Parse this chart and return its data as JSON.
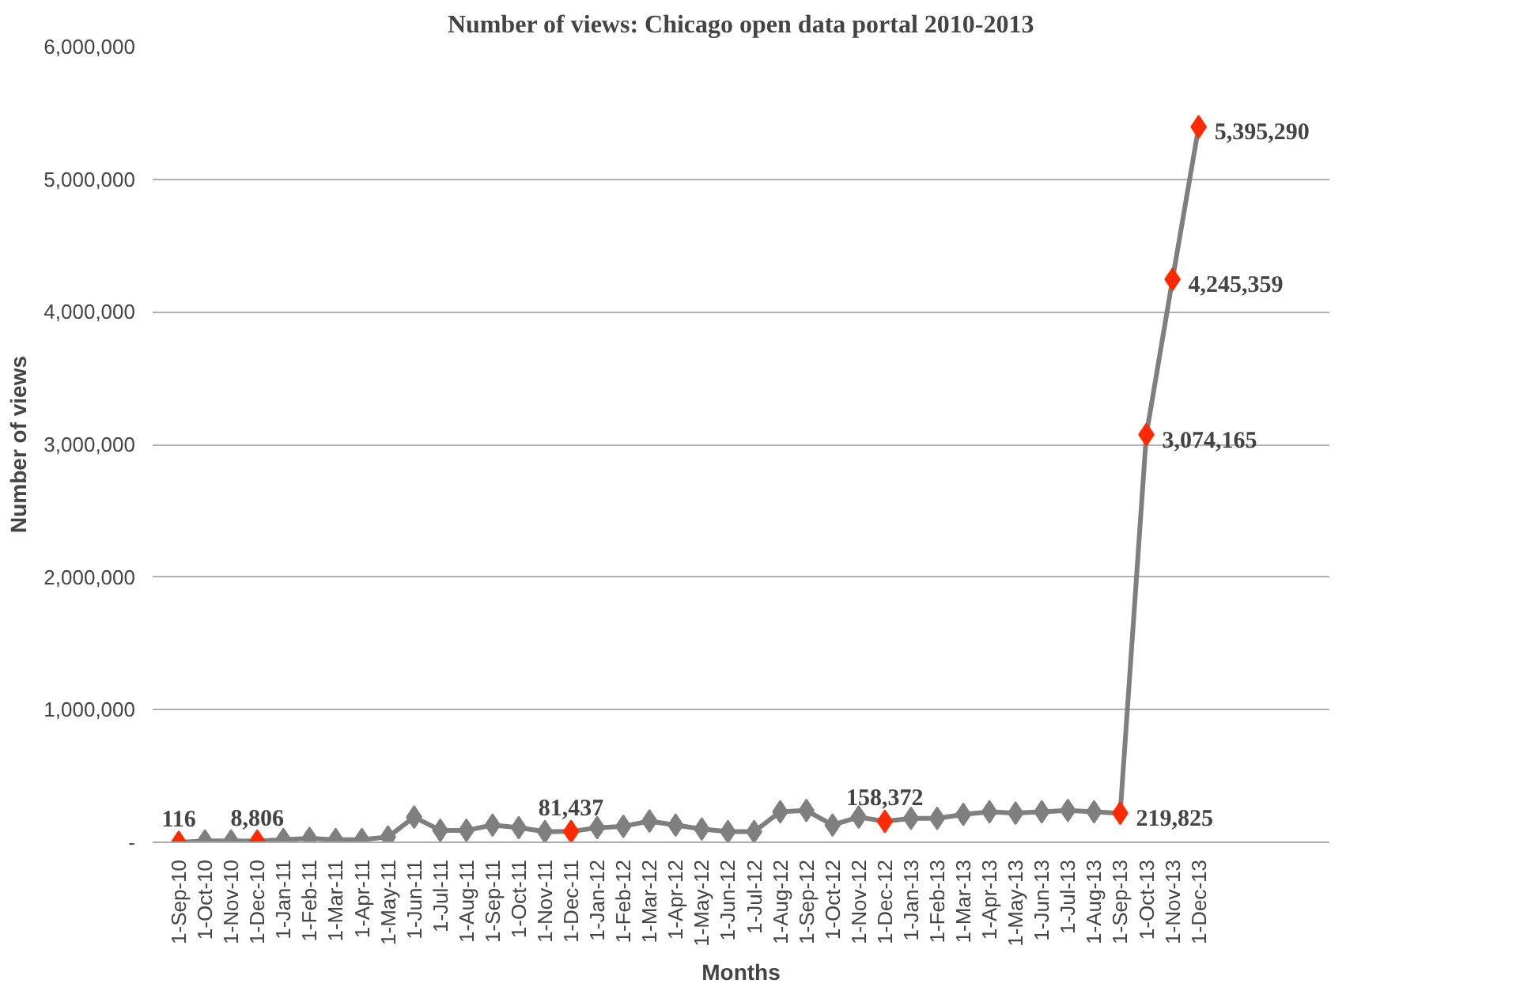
{
  "chart_data": {
    "type": "line",
    "title": "Number of views: Chicago open data portal 2010-2013",
    "xlabel": "Months",
    "ylabel": "Number of views",
    "categories": [
      "1-Sep-10",
      "1-Oct-10",
      "1-Nov-10",
      "1-Dec-10",
      "1-Jan-11",
      "1-Feb-11",
      "1-Mar-11",
      "1-Apr-11",
      "1-May-11",
      "1-Jun-11",
      "1-Jul-11",
      "1-Aug-11",
      "1-Sep-11",
      "1-Oct-11",
      "1-Nov-11",
      "1-Dec-11",
      "1-Jan-12",
      "1-Feb-12",
      "1-Mar-12",
      "1-Apr-12",
      "1-May-12",
      "1-Jun-12",
      "1-Jul-12",
      "1-Aug-12",
      "1-Sep-12",
      "1-Oct-12",
      "1-Nov-12",
      "1-Dec-12",
      "1-Jan-13",
      "1-Feb-13",
      "1-Mar-13",
      "1-Apr-13",
      "1-May-13",
      "1-Jun-13",
      "1-Jul-13",
      "1-Aug-13",
      "1-Sep-13",
      "1-Oct-13",
      "1-Nov-13",
      "1-Dec-13"
    ],
    "series": [
      {
        "color": "#7f7f7f",
        "values": [
          116,
          10000,
          10000,
          8806,
          20000,
          30000,
          20000,
          20000,
          40000,
          190000,
          90000,
          90000,
          130000,
          110000,
          80000,
          81437,
          110000,
          120000,
          160000,
          130000,
          100000,
          80000,
          80000,
          230000,
          240000,
          130000,
          190000,
          158372,
          180000,
          180000,
          210000,
          230000,
          220000,
          230000,
          240000,
          230000,
          219825,
          3074165,
          4245359,
          5395290
        ],
        "colors": [
          "#ff2a00",
          "#7f7f7f",
          "#7f7f7f",
          "#ff2a00",
          "#7f7f7f",
          "#7f7f7f",
          "#7f7f7f",
          "#7f7f7f",
          "#7f7f7f",
          "#7f7f7f",
          "#7f7f7f",
          "#7f7f7f",
          "#7f7f7f",
          "#7f7f7f",
          "#7f7f7f",
          "#ff2a00",
          "#7f7f7f",
          "#7f7f7f",
          "#7f7f7f",
          "#7f7f7f",
          "#7f7f7f",
          "#7f7f7f",
          "#7f7f7f",
          "#7f7f7f",
          "#7f7f7f",
          "#7f7f7f",
          "#7f7f7f",
          "#ff2a00",
          "#7f7f7f",
          "#7f7f7f",
          "#7f7f7f",
          "#7f7f7f",
          "#7f7f7f",
          "#7f7f7f",
          "#7f7f7f",
          "#7f7f7f",
          "#ff2a00",
          "#ff2a00",
          "#ff2a00",
          "#ff2a00"
        ],
        "value_labels": [
          "116",
          null,
          null,
          "8,806",
          null,
          null,
          null,
          null,
          null,
          null,
          null,
          null,
          null,
          null,
          null,
          "81,437",
          null,
          null,
          null,
          null,
          null,
          null,
          null,
          null,
          null,
          null,
          null,
          "158,372",
          null,
          null,
          null,
          null,
          null,
          null,
          null,
          null,
          "219,825",
          "3,074,165",
          "4,245,359",
          "5,395,290"
        ]
      }
    ],
    "ylim": [
      0,
      6000000
    ],
    "yticks": [
      {
        "value": 0,
        "label": "-"
      },
      {
        "value": 1000000,
        "label": "1,000,000"
      },
      {
        "value": 2000000,
        "label": "2,000,000"
      },
      {
        "value": 3000000,
        "label": "3,000,000"
      },
      {
        "value": 4000000,
        "label": "4,000,000"
      },
      {
        "value": 5000000,
        "label": "5,000,000"
      },
      {
        "value": 6000000,
        "label": "6,000,000"
      }
    ],
    "grid": "y",
    "marker": "diamond",
    "line_style": "solid"
  }
}
